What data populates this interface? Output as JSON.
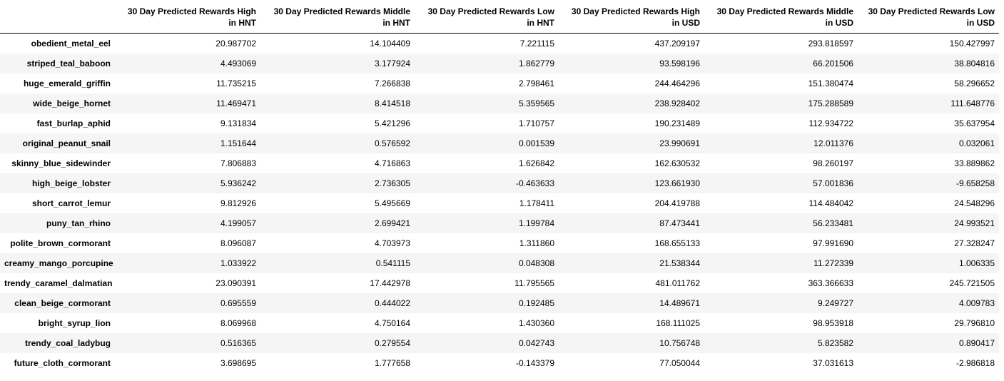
{
  "table": {
    "index_header": "",
    "columns": [
      "30 Day Predicted Rewards High in HNT",
      "30 Day Predicted Rewards Middle in HNT",
      "30 Day Predicted Rewards Low in HNT",
      "30 Day Predicted Rewards High in USD",
      "30 Day Predicted Rewards Middle in USD",
      "30 Day Predicted Rewards Low in USD"
    ],
    "rows": [
      {
        "name": "obedient_metal_eel",
        "values": [
          "20.987702",
          "14.104409",
          "7.221115",
          "437.209197",
          "293.818597",
          "150.427997"
        ]
      },
      {
        "name": "striped_teal_baboon",
        "values": [
          "4.493069",
          "3.177924",
          "1.862779",
          "93.598196",
          "66.201506",
          "38.804816"
        ]
      },
      {
        "name": "huge_emerald_griffin",
        "values": [
          "11.735215",
          "7.266838",
          "2.798461",
          "244.464296",
          "151.380474",
          "58.296652"
        ]
      },
      {
        "name": "wide_beige_hornet",
        "values": [
          "11.469471",
          "8.414518",
          "5.359565",
          "238.928402",
          "175.288589",
          "111.648776"
        ]
      },
      {
        "name": "fast_burlap_aphid",
        "values": [
          "9.131834",
          "5.421296",
          "1.710757",
          "190.231489",
          "112.934722",
          "35.637954"
        ]
      },
      {
        "name": "original_peanut_snail",
        "values": [
          "1.151644",
          "0.576592",
          "0.001539",
          "23.990691",
          "12.011376",
          "0.032061"
        ]
      },
      {
        "name": "skinny_blue_sidewinder",
        "values": [
          "7.806883",
          "4.716863",
          "1.626842",
          "162.630532",
          "98.260197",
          "33.889862"
        ]
      },
      {
        "name": "high_beige_lobster",
        "values": [
          "5.936242",
          "2.736305",
          "-0.463633",
          "123.661930",
          "57.001836",
          "-9.658258"
        ]
      },
      {
        "name": "short_carrot_lemur",
        "values": [
          "9.812926",
          "5.495669",
          "1.178411",
          "204.419788",
          "114.484042",
          "24.548296"
        ]
      },
      {
        "name": "puny_tan_rhino",
        "values": [
          "4.199057",
          "2.699421",
          "1.199784",
          "87.473441",
          "56.233481",
          "24.993521"
        ]
      },
      {
        "name": "polite_brown_cormorant",
        "values": [
          "8.096087",
          "4.703973",
          "1.311860",
          "168.655133",
          "97.991690",
          "27.328247"
        ]
      },
      {
        "name": "creamy_mango_porcupine",
        "values": [
          "1.033922",
          "0.541115",
          "0.048308",
          "21.538344",
          "11.272339",
          "1.006335"
        ]
      },
      {
        "name": "trendy_caramel_dalmatian",
        "values": [
          "23.090391",
          "17.442978",
          "11.795565",
          "481.011762",
          "363.366633",
          "245.721505"
        ]
      },
      {
        "name": "clean_beige_cormorant",
        "values": [
          "0.695559",
          "0.444022",
          "0.192485",
          "14.489671",
          "9.249727",
          "4.009783"
        ]
      },
      {
        "name": "bright_syrup_lion",
        "values": [
          "8.069968",
          "4.750164",
          "1.430360",
          "168.111025",
          "98.953918",
          "29.796810"
        ]
      },
      {
        "name": "trendy_coal_ladybug",
        "values": [
          "0.516365",
          "0.279554",
          "0.042743",
          "10.756748",
          "5.823582",
          "0.890417"
        ]
      },
      {
        "name": "future_cloth_cormorant",
        "values": [
          "3.698695",
          "1.777658",
          "-0.143379",
          "77.050044",
          "37.031613",
          "-2.986818"
        ]
      }
    ]
  },
  "colors": {
    "header_border": "#000000",
    "stripe": "#f5f5f5",
    "background": "#ffffff",
    "text": "#000000"
  }
}
